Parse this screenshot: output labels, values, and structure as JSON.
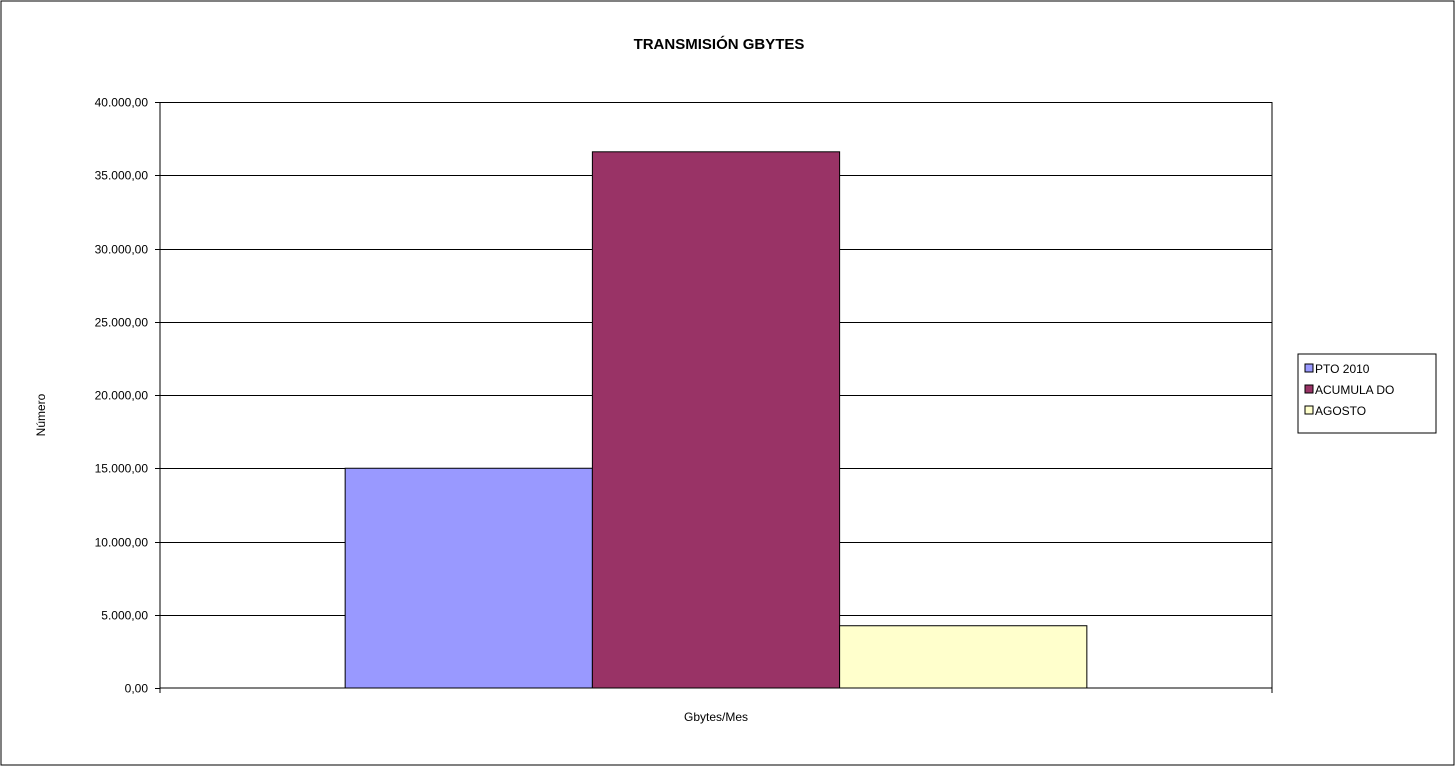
{
  "chart_data": {
    "type": "bar",
    "title": "TRANSMISIÓN GBYTES",
    "xlabel": "Gbytes/Mes",
    "ylabel": "Número",
    "categories": [
      "Gbytes/Mes"
    ],
    "series": [
      {
        "name": "PTO  2010",
        "values": [
          15000
        ],
        "color": "#9999ff"
      },
      {
        "name": "ACUMULA DO",
        "values": [
          36600
        ],
        "color": "#993366"
      },
      {
        "name": "AGOSTO",
        "values": [
          4250
        ],
        "color": "#ffffcc"
      }
    ],
    "ylim": [
      0,
      40000
    ],
    "yticks": [
      0,
      5000,
      10000,
      15000,
      20000,
      25000,
      30000,
      35000,
      40000
    ],
    "ytick_labels": [
      "0,00",
      "5.000,00",
      "10.000,00",
      "15.000,00",
      "20.000,00",
      "25.000,00",
      "30.000,00",
      "35.000,00",
      "40.000,00"
    ],
    "grid": true,
    "legend_position": "right"
  }
}
